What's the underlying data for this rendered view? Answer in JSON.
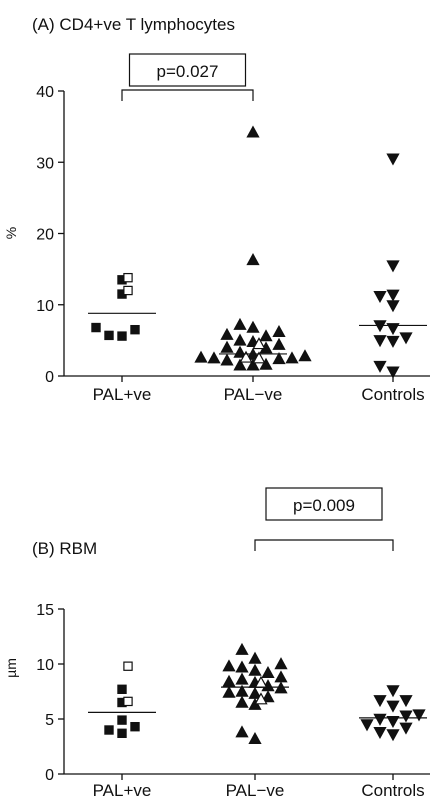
{
  "chart_data": [
    {
      "type": "scatter",
      "title": "(A) CD4+ve T lymphocytes",
      "ylabel": "%",
      "ylim": [
        0,
        40
      ],
      "yticks": [
        "0",
        "10",
        "20",
        "30",
        "40"
      ],
      "categories": [
        "PAL+ve",
        "PAL−ve",
        "Controls"
      ],
      "annotation": {
        "text": "p=0.027",
        "from": "PAL+ve",
        "to": "PAL−ve"
      },
      "groups": [
        {
          "category": "PAL+ve",
          "marker": "square",
          "filled": [
            13.5,
            11.5,
            6.8,
            6.5,
            5.7,
            5.6
          ],
          "open": [
            13.8,
            12.0
          ],
          "median": 8.8
        },
        {
          "category": "PAL−ve",
          "marker": "triangle-up",
          "filled": [
            34.2,
            16.3,
            7.2,
            6.8,
            6.2,
            5.8,
            5.6,
            5.0,
            4.8,
            4.4,
            4.0,
            3.9,
            3.3,
            3.0,
            2.8,
            2.6,
            2.5,
            2.5,
            2.4,
            2.2,
            1.6,
            1.5,
            1.5
          ],
          "open": [
            4.5,
            2.6,
            2.5
          ],
          "median": 3.1
        },
        {
          "category": "Controls",
          "marker": "triangle-down",
          "filled": [
            30.5,
            15.5,
            11.4,
            11.2,
            9.9,
            7.1,
            6.7,
            5.4,
            5.0,
            4.9,
            1.4,
            0.6
          ],
          "open": [],
          "median": 7.1
        }
      ]
    },
    {
      "type": "scatter",
      "title": "(B) RBM",
      "ylabel": "µm",
      "ylim": [
        0,
        15
      ],
      "yticks": [
        "0",
        "5",
        "10",
        "15"
      ],
      "categories": [
        "PAL+ve",
        "PAL−ve",
        "Controls"
      ],
      "annotation": {
        "text": "p=0.009",
        "from": "PAL−ve",
        "to": "Controls"
      },
      "groups": [
        {
          "category": "PAL+ve",
          "marker": "square",
          "filled": [
            7.7,
            6.5,
            4.9,
            4.3,
            4.0,
            3.7
          ],
          "open": [
            9.8,
            6.6
          ],
          "median": 5.6
        },
        {
          "category": "PAL−ve",
          "marker": "triangle-up",
          "filled": [
            11.3,
            10.5,
            10.0,
            9.8,
            9.7,
            9.4,
            9.2,
            8.8,
            8.6,
            8.4,
            8.3,
            8.0,
            7.8,
            7.5,
            7.4,
            7.3,
            7.0,
            6.5,
            6.3,
            3.8,
            3.2
          ],
          "open": [
            8.3,
            6.8
          ],
          "median": 7.9
        },
        {
          "category": "Controls",
          "marker": "triangle-down",
          "filled": [
            7.6,
            6.7,
            6.7,
            6.2,
            5.4,
            5.3,
            5.0,
            4.8,
            4.5,
            4.2,
            3.8,
            3.6
          ],
          "open": [],
          "median": 5.1
        }
      ]
    }
  ]
}
